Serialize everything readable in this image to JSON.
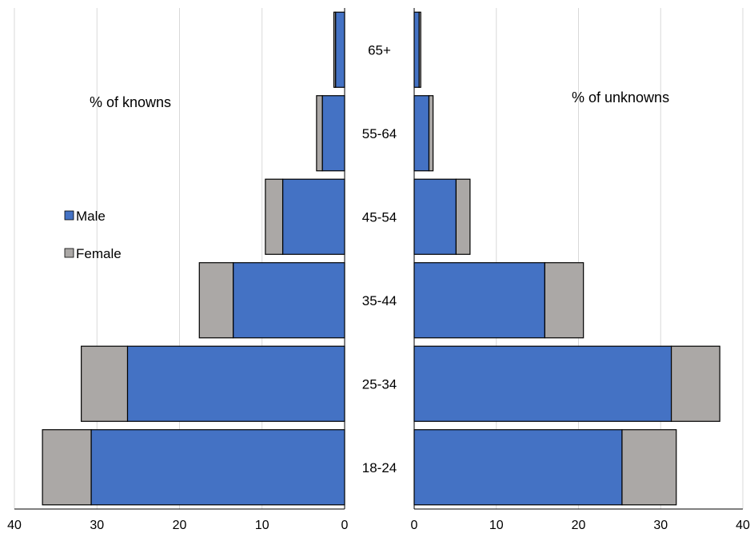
{
  "chart_data": {
    "type": "bar",
    "subtype": "population-pyramid (stacked horizontal bars, two panels)",
    "categories": [
      "18-24",
      "25-34",
      "35-44",
      "45-54",
      "55-64",
      "65+"
    ],
    "panels": [
      {
        "title": "% of knowns",
        "direction": "left",
        "xlim": [
          0,
          40
        ],
        "ticks": [
          40,
          30,
          20,
          10,
          0
        ],
        "series": [
          {
            "name": "Male",
            "values": [
              30.7,
              26.3,
              13.5,
              7.5,
              2.7,
              1.1
            ]
          },
          {
            "name": "Female",
            "values": [
              5.9,
              5.6,
              4.1,
              2.1,
              0.7,
              0.2
            ]
          }
        ]
      },
      {
        "title": "% of unknowns",
        "direction": "right",
        "xlim": [
          0,
          40
        ],
        "ticks": [
          0,
          10,
          20,
          30,
          40
        ],
        "series": [
          {
            "name": "Male",
            "values": [
              25.3,
              31.3,
              15.9,
              5.1,
              1.8,
              0.6
            ]
          },
          {
            "name": "Female",
            "values": [
              6.6,
              5.9,
              4.7,
              1.7,
              0.5,
              0.2
            ]
          }
        ]
      }
    ],
    "legend": {
      "placement": "left",
      "items": [
        {
          "label": "Male",
          "color": "#4472C4"
        },
        {
          "label": "Female",
          "color": "#ABA8A6"
        }
      ]
    },
    "grid": "vertical",
    "colors": {
      "male": "#4472C4",
      "female": "#ABA8A6",
      "grid": "#D9D9D9",
      "border": "#000000"
    }
  }
}
